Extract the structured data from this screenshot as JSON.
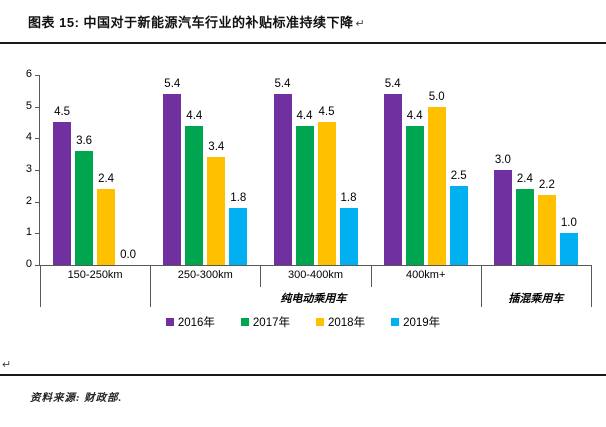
{
  "header": {
    "title": "图表 15:  中国对于新能源汽车行业的补贴标准持续下降",
    "return_mark": "↵"
  },
  "chart_data": {
    "type": "bar",
    "title": "中国对于新能源汽车行业的补贴标准持续下降",
    "categories": [
      "150-250km",
      "250-300km",
      "300-400km",
      "400km+",
      ""
    ],
    "category_groups": [
      {
        "label": "纯电动乘用车",
        "span_categories": [
          0,
          3
        ]
      },
      {
        "label": "插混乘用车",
        "span_categories": [
          4,
          4
        ]
      }
    ],
    "series": [
      {
        "name": "2016年",
        "color": "#7030A0",
        "values": [
          4.5,
          5.4,
          5.4,
          5.4,
          3.0
        ]
      },
      {
        "name": "2017年",
        "color": "#00A550",
        "values": [
          3.6,
          4.4,
          4.4,
          4.4,
          2.4
        ]
      },
      {
        "name": "2018年",
        "color": "#FFC000",
        "values": [
          2.4,
          3.4,
          4.5,
          5.0,
          2.2
        ]
      },
      {
        "name": "2019年",
        "color": "#00B0F0",
        "values": [
          0.0,
          1.8,
          1.8,
          2.5,
          1.0
        ]
      }
    ],
    "ylim": [
      0,
      6
    ],
    "yticks": [
      0,
      1,
      2,
      3,
      4,
      5,
      6
    ],
    "grid": false,
    "legend_position": "bottom",
    "value_labels_decimals": 1,
    "axis_color": "#595959"
  },
  "footer": {
    "return_mark": "↵",
    "source": "资料来源: 财政部."
  }
}
